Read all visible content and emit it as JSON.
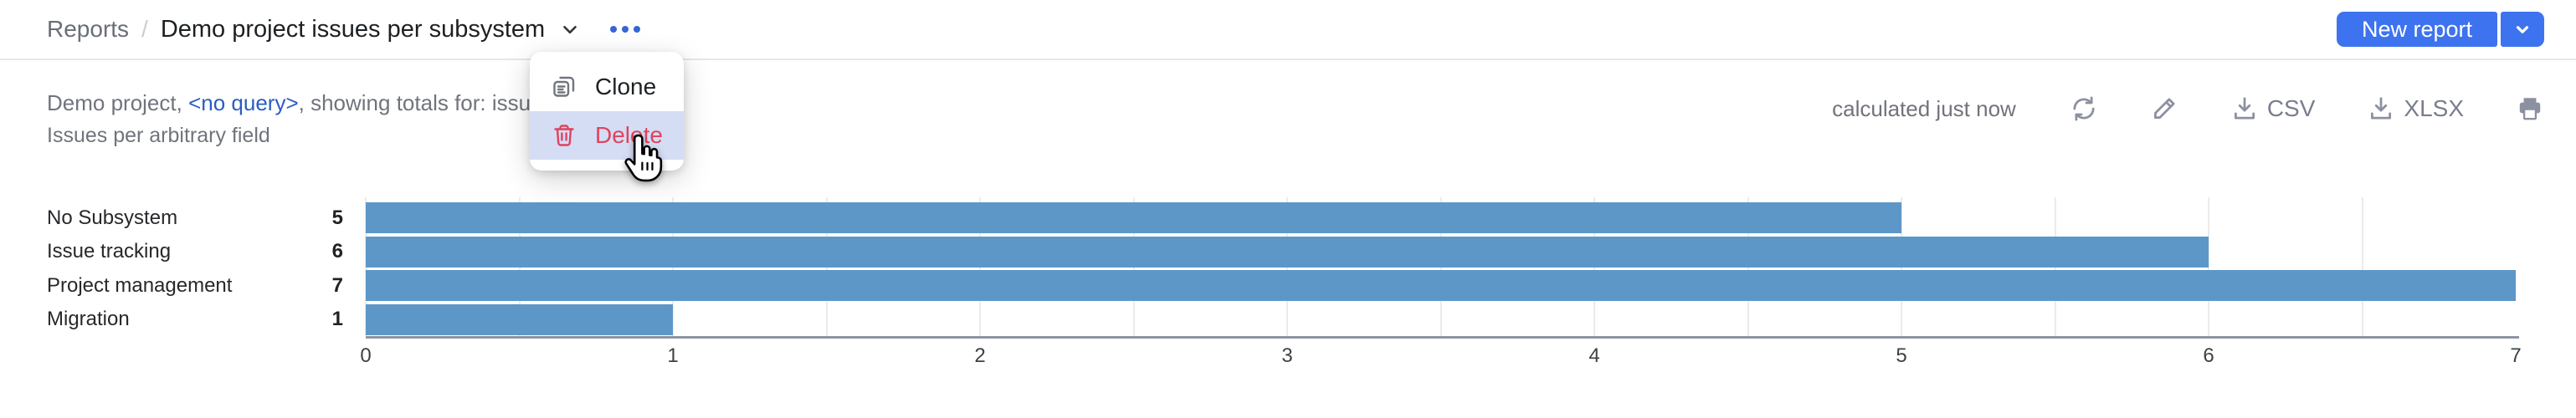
{
  "header": {
    "breadcrumb": {
      "root": "Reports",
      "separator": "/",
      "title": "Demo project issues per subsystem"
    },
    "new_report_label": "New report"
  },
  "menu": {
    "items": [
      {
        "label": "Clone",
        "icon": "clone-icon",
        "hovered": false
      },
      {
        "label": "Delete",
        "icon": "trash-icon",
        "hovered": true,
        "color": "#e0435c"
      }
    ]
  },
  "summary": {
    "line1_prefix": "Demo project, ",
    "query_link": "<no query>",
    "line1_suffix": ", showing totals for: issues cou",
    "line2": "Issues per arbitrary field"
  },
  "toolbar": {
    "calculated": "calculated just now",
    "csv_label": "CSV",
    "xlsx_label": "XLSX",
    "icons": [
      "refresh-icon",
      "edit-pencil-icon",
      "download-icon",
      "download-icon",
      "printer-icon"
    ]
  },
  "chart_data": {
    "type": "bar",
    "orientation": "horizontal",
    "title": "Issues per arbitrary field",
    "categories": [
      "No Subsystem",
      "Issue tracking",
      "Project management",
      "Migration"
    ],
    "values": [
      5,
      6,
      7,
      1
    ],
    "xlim": [
      0,
      7
    ],
    "xticks": [
      0,
      1,
      2,
      3,
      4,
      5,
      6,
      7
    ],
    "minor_grid_step": 0.5,
    "grid": true,
    "bar_color": "#5d97c8"
  },
  "colors": {
    "accent_button": "#3d73ee",
    "link_blue": "#2a5cc4",
    "delete_red": "#e0435c",
    "menu_hover": "#d5ddf5",
    "bar": "#5d97c8",
    "kebab_active": "#3466d4"
  }
}
